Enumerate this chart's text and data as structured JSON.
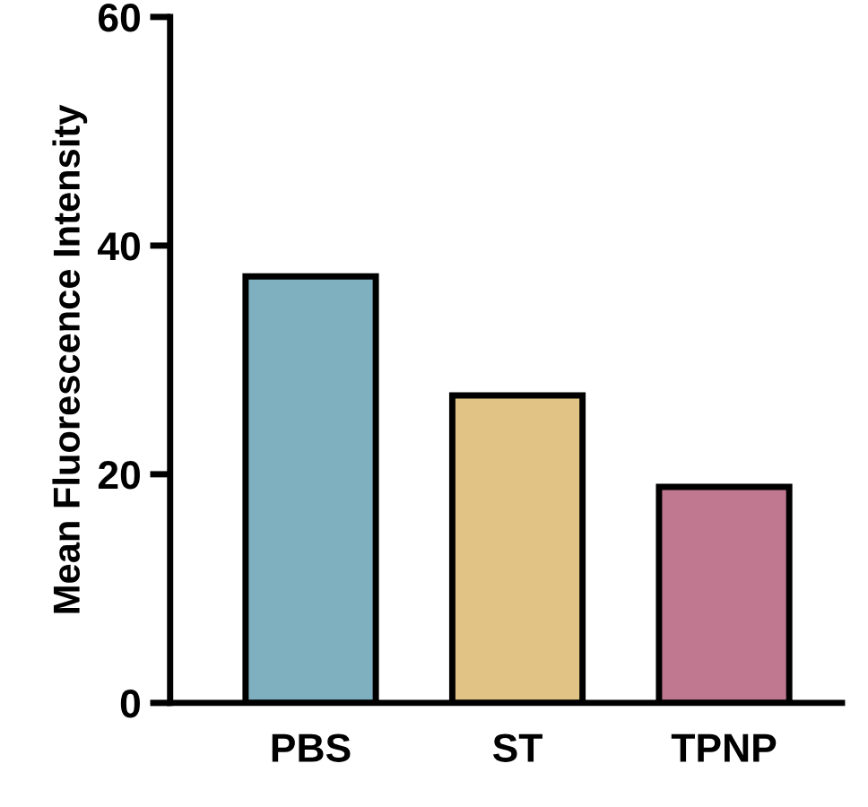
{
  "chart_data": {
    "type": "bar",
    "ylabel": "Mean Fluorescence Intensity",
    "categories": [
      "PBS",
      "ST",
      "TPNP"
    ],
    "values": [
      37.3,
      26.9,
      18.9
    ],
    "colors": [
      "#7fb0c0",
      "#e0c385",
      "#c07890"
    ],
    "ylim": [
      0,
      60
    ],
    "yticks": [
      0,
      20,
      40,
      60
    ],
    "grid": false,
    "legend": false
  }
}
